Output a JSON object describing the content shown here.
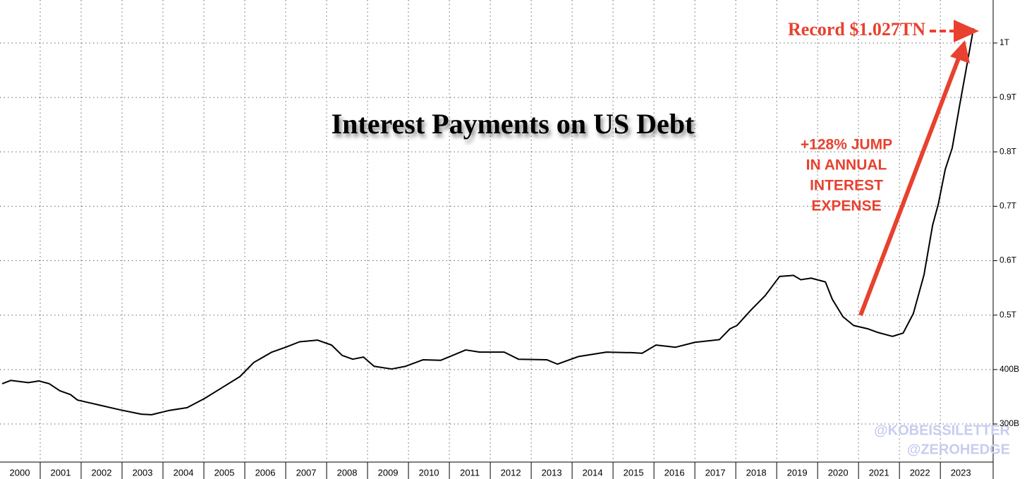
{
  "chart_data": {
    "type": "line",
    "title": "Interest Payments on US Debt",
    "record_label": "Record $1.027TN",
    "jump_label": [
      "+128% JUMP",
      "IN ANNUAL",
      "INTEREST",
      "EXPENSE"
    ],
    "watermarks": [
      "@KOBEISSILETTER",
      "@ZEROHEDGE"
    ],
    "color": "#000000",
    "x": [
      2000.07,
      2000.28,
      2000.71,
      2000.97,
      2001.22,
      2001.48,
      2001.74,
      2001.91,
      2002.43,
      2002.95,
      2003.47,
      2003.72,
      2004.16,
      2004.59,
      2005.02,
      2005.45,
      2005.88,
      2006.22,
      2006.66,
      2007.0,
      2007.34,
      2007.78,
      2008.12,
      2008.38,
      2008.64,
      2008.9,
      2009.16,
      2009.59,
      2009.93,
      2010.36,
      2010.79,
      2011.4,
      2011.74,
      2012.34,
      2012.69,
      2013.38,
      2013.64,
      2014.16,
      2014.84,
      2015.45,
      2015.71,
      2016.05,
      2016.53,
      2017.0,
      2017.6,
      2017.86,
      2018.03,
      2018.38,
      2018.72,
      2019.07,
      2019.41,
      2019.59,
      2019.84,
      2020.19,
      2020.36,
      2020.62,
      2020.88,
      2021.22,
      2021.48,
      2021.83,
      2022.09,
      2022.34,
      2022.6,
      2022.81,
      2022.95,
      2023.12,
      2023.29,
      2023.47,
      2023.64,
      2023.81
    ],
    "values": [
      374,
      380,
      376,
      379,
      374,
      361,
      354,
      344,
      335,
      326,
      318,
      317,
      325,
      330,
      347,
      367,
      387,
      413,
      432,
      441,
      451,
      454,
      445,
      426,
      419,
      423,
      406,
      401,
      406,
      418,
      417,
      436,
      432,
      432,
      419,
      418,
      410,
      424,
      432,
      431,
      430,
      445,
      441,
      450,
      455,
      475,
      481,
      510,
      536,
      571,
      573,
      565,
      568,
      561,
      529,
      497,
      481,
      475,
      468,
      461,
      467,
      503,
      574,
      665,
      704,
      768,
      807,
      885,
      956,
      1027
    ],
    "xlim": [
      2000,
      2024.29
    ],
    "xticks": [
      2000,
      2001,
      2002,
      2003,
      2004,
      2005,
      2006,
      2007,
      2008,
      2009,
      2010,
      2011,
      2012,
      2013,
      2014,
      2015,
      2016,
      2017,
      2018,
      2019,
      2020,
      2021,
      2022,
      2023
    ],
    "ylim": [
      230,
      1079
    ],
    "yticks": [
      {
        "value": 300,
        "label": "300B"
      },
      {
        "value": 400,
        "label": "400B"
      },
      {
        "value": 500,
        "label": "0.5T"
      },
      {
        "value": 600,
        "label": "0.6T"
      },
      {
        "value": 700,
        "label": "0.7T"
      },
      {
        "value": 800,
        "label": "0.8T"
      },
      {
        "value": 900,
        "label": "0.9T"
      },
      {
        "value": 1000,
        "label": "1T"
      }
    ],
    "grid": true
  }
}
